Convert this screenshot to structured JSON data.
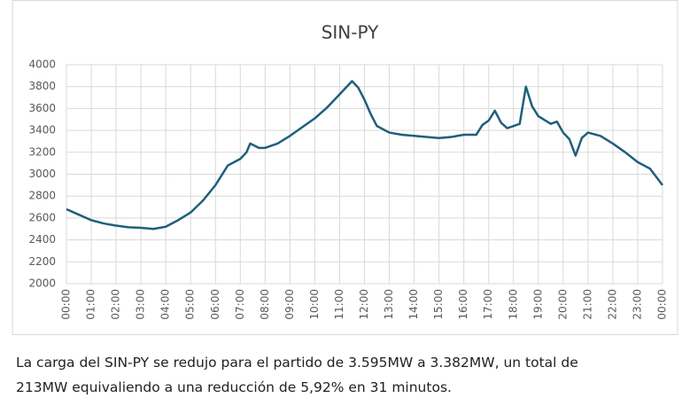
{
  "chart_data": {
    "type": "line",
    "title": "SIN-PY",
    "color": "#1f5f7a",
    "grid": true,
    "x": [
      0,
      0.5,
      1,
      1.5,
      2,
      2.5,
      3,
      3.5,
      4,
      4.5,
      5,
      5.5,
      6,
      6.5,
      7,
      7.25,
      7.4,
      7.75,
      8,
      8.5,
      9,
      9.5,
      10,
      10.5,
      11,
      11.5,
      11.75,
      12,
      12.25,
      12.5,
      13,
      13.5,
      14,
      14.5,
      15,
      15.5,
      16,
      16.5,
      16.75,
      17,
      17.25,
      17.5,
      17.75,
      18,
      18.25,
      18.5,
      18.75,
      19,
      19.5,
      19.75,
      20,
      20.25,
      20.5,
      20.75,
      21,
      21.5,
      22,
      22.5,
      23,
      23.5,
      24
    ],
    "values": [
      2680,
      2630,
      2580,
      2550,
      2530,
      2515,
      2510,
      2500,
      2520,
      2580,
      2650,
      2760,
      2900,
      3080,
      3140,
      3200,
      3280,
      3240,
      3240,
      3280,
      3350,
      3430,
      3510,
      3610,
      3730,
      3850,
      3790,
      3680,
      3550,
      3440,
      3380,
      3360,
      3350,
      3340,
      3330,
      3340,
      3360,
      3360,
      3450,
      3490,
      3580,
      3470,
      3420,
      3440,
      3460,
      3800,
      3620,
      3530,
      3460,
      3480,
      3380,
      3320,
      3170,
      3330,
      3380,
      3350,
      3280,
      3200,
      3110,
      3050,
      2900
    ],
    "xlim": [
      0,
      24
    ],
    "xticks": [
      {
        "value": 0,
        "label": "00:00"
      },
      {
        "value": 1,
        "label": "01:00"
      },
      {
        "value": 2,
        "label": "02:00"
      },
      {
        "value": 3,
        "label": "03:00"
      },
      {
        "value": 4,
        "label": "04:00"
      },
      {
        "value": 5,
        "label": "05:00"
      },
      {
        "value": 6,
        "label": "06:00"
      },
      {
        "value": 7,
        "label": "07:00"
      },
      {
        "value": 8,
        "label": "08:00"
      },
      {
        "value": 9,
        "label": "09:00"
      },
      {
        "value": 10,
        "label": "10:00"
      },
      {
        "value": 11,
        "label": "11:00"
      },
      {
        "value": 12,
        "label": "12:00"
      },
      {
        "value": 13,
        "label": "13:00"
      },
      {
        "value": 14,
        "label": "14:00"
      },
      {
        "value": 15,
        "label": "15:00"
      },
      {
        "value": 16,
        "label": "16:00"
      },
      {
        "value": 17,
        "label": "17:00"
      },
      {
        "value": 18,
        "label": "18:00"
      },
      {
        "value": 19,
        "label": "19:00"
      },
      {
        "value": 20,
        "label": "20:00"
      },
      {
        "value": 21,
        "label": "21:00"
      },
      {
        "value": 22,
        "label": "22:00"
      },
      {
        "value": 23,
        "label": "23:00"
      },
      {
        "value": 24,
        "label": "00:00"
      }
    ],
    "ylim": [
      2000,
      4000
    ],
    "yticks": [
      2000,
      2200,
      2400,
      2600,
      2800,
      3000,
      3200,
      3400,
      3600,
      3800,
      4000
    ]
  },
  "caption": [
    "La carga del SIN-PY se redujo para el partido de 3.595MW a 3.382MW, un total de",
    "213MW equivaliendo a una reducción de 5,92% en 31 minutos."
  ]
}
